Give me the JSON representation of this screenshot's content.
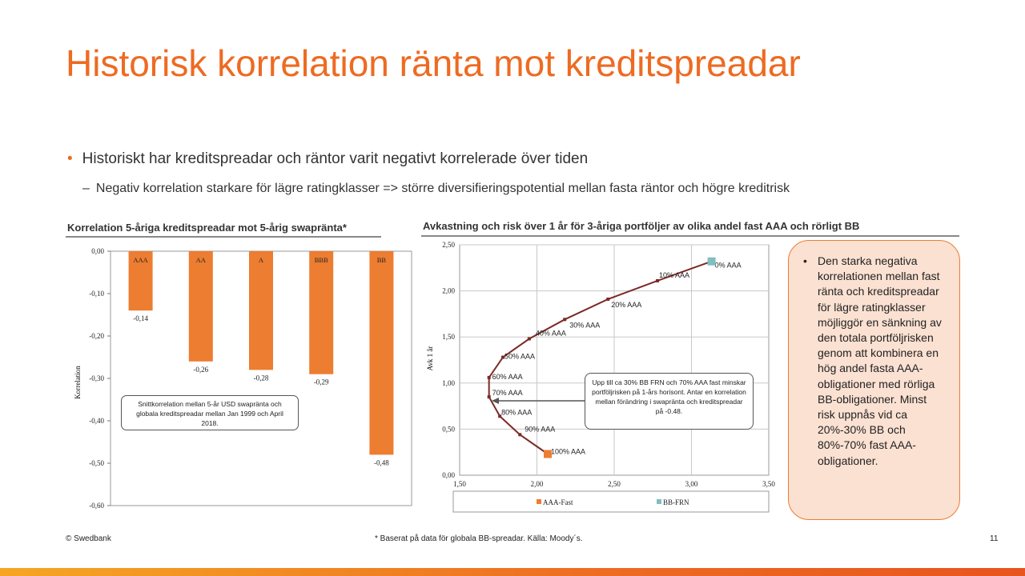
{
  "slide": {
    "title": "Historisk korrelation ränta mot kreditspreadar",
    "bullet_1": "Historiskt har kreditspreadar och räntor varit negativt korrelerade över tiden",
    "bullet_2": "Negativ korrelation starkare  för lägre ratingklasser => större diversifieringspotential mellan fasta räntor och högre kreditrisk",
    "bullet_marker": "•",
    "sub_marker": "–",
    "callout_marker": "•",
    "callout": "Den starka negativa korrelationen mellan fast ränta och kreditspreadar för lägre ratingklasser möjliggör en sänkning av den totala portföljrisken genom att kombinera en hög andel fasta AAA-obligationer med rörliga BB-obligationer. Minst risk uppnås vid ca 20%-30% BB och 80%-70% fast AAA-obligationer.",
    "footer_left": "© Swedbank",
    "footer_center": "* Baserat på data för globala BB-spreadar. Källa: Moody´s.",
    "page_number": "11"
  },
  "colors": {
    "accent": "#ed6b22",
    "bar": "#ed7d31",
    "line": "#7b2a26",
    "bb_marker": "#7fbfbf",
    "callout_bg": "#fbe1d2"
  },
  "chart_data": [
    {
      "type": "bar",
      "title": "Korrelation  5-åriga kreditspreadar mot 5-årig swapränta*",
      "ylabel": "Korrelation",
      "categories": [
        "AAA",
        "AA",
        "A",
        "BBB",
        "BB"
      ],
      "values": [
        -0.14,
        -0.26,
        -0.28,
        -0.29,
        -0.48
      ],
      "value_labels": [
        "-0,14",
        "-0,26",
        "-0,28",
        "-0,29",
        "-0,48"
      ],
      "ylim": [
        -0.6,
        0
      ],
      "yticks": [
        "0,00",
        "-0,10",
        "-0,20",
        "-0,30",
        "-0,40",
        "-0,50",
        "-0,60"
      ],
      "annotation": "Snittkorrelation mellan 5-år USD swapränta och globala kreditspreadar mellan Jan 1999 och April 2018.",
      "grid": false
    },
    {
      "type": "scatter",
      "title": "Avkastning och risk över 1 år för 3-åriga portföljer av olika andel fast AAA och rörligt BB",
      "ylabel": "Avk 1 år",
      "xlim": [
        1.5,
        3.5
      ],
      "ylim": [
        0,
        2.5
      ],
      "xticks": [
        "1,50",
        "2,00",
        "2,50",
        "3,00",
        "3,50"
      ],
      "yticks": [
        "0,00",
        "0,50",
        "1,00",
        "1,50",
        "2,00",
        "2,50"
      ],
      "grid": true,
      "legend_position": "bottom",
      "series": [
        {
          "name": "AAA-Fast",
          "x": [
            2.07
          ],
          "y": [
            0.23
          ]
        },
        {
          "name": "BB-FRN",
          "x": [
            3.13
          ],
          "y": [
            2.32
          ]
        }
      ],
      "frontier": {
        "x": [
          3.13,
          2.78,
          2.46,
          2.18,
          1.95,
          1.78,
          1.69,
          1.69,
          1.76,
          1.89,
          2.07
        ],
        "y": [
          2.32,
          2.11,
          1.91,
          1.69,
          1.48,
          1.28,
          1.06,
          0.85,
          0.64,
          0.44,
          0.23
        ],
        "labels": [
          "0% AAA",
          "10% AAA",
          "20% AAA",
          "30% AAA",
          "40% AAA",
          "50% AAA",
          "60% AAA",
          "70% AAA",
          "80% AAA",
          "90% AAA",
          "100% AAA"
        ]
      },
      "annotation": "Upp till ca 30% BB FRN och 70% AAA fast minskar portföljrisken på 1-års horisont. Antar en korrelation mellan förändring i swapränta och kreditspreadar på -0.48."
    }
  ]
}
